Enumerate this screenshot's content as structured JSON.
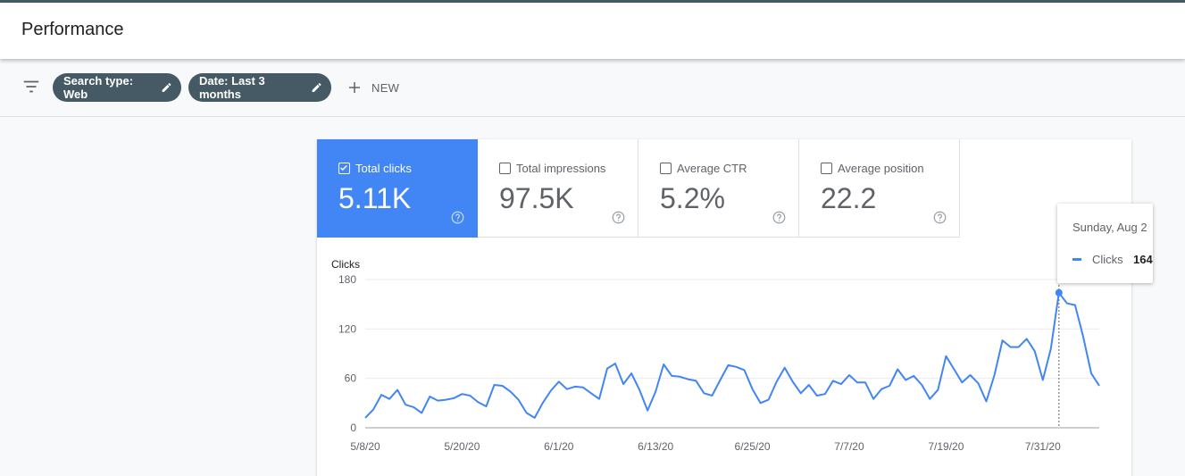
{
  "header": {
    "title": "Performance"
  },
  "toolbar": {
    "filter_icon": "filter-list-icon",
    "chips": [
      {
        "label": "Search type: Web",
        "icon": "edit-icon"
      },
      {
        "label": "Date: Last 3 months",
        "icon": "edit-icon"
      }
    ],
    "new_label": "NEW"
  },
  "metrics": [
    {
      "label": "Total clicks",
      "value": "5.11K",
      "checked": true
    },
    {
      "label": "Total impressions",
      "value": "97.5K",
      "checked": false
    },
    {
      "label": "Average CTR",
      "value": "5.2%",
      "checked": false
    },
    {
      "label": "Average position",
      "value": "22.2",
      "checked": false
    }
  ],
  "colors": {
    "accent": "#4285f4",
    "chip": "#455a64"
  },
  "tooltip": {
    "date": "Sunday, Aug 2",
    "series": "Clicks",
    "value": "164"
  },
  "chart_data": {
    "type": "line",
    "ylabel": "Clicks",
    "ylim": [
      0,
      180
    ],
    "yticks": [
      0,
      60,
      120,
      180
    ],
    "xtick_labels": [
      "5/8/20",
      "5/20/20",
      "6/1/20",
      "6/13/20",
      "6/25/20",
      "7/7/20",
      "7/19/20",
      "7/31/20"
    ],
    "xtick_indices": [
      0,
      12,
      24,
      36,
      48,
      60,
      72,
      84
    ],
    "highlight_index": 86,
    "grid": true,
    "series": [
      {
        "name": "Clicks",
        "color": "#4285f4",
        "values": [
          12,
          22,
          40,
          35,
          46,
          28,
          25,
          18,
          38,
          33,
          34,
          36,
          41,
          39,
          31,
          26,
          52,
          51,
          44,
          34,
          18,
          12,
          30,
          45,
          56,
          47,
          50,
          49,
          42,
          35,
          72,
          78,
          53,
          66,
          46,
          21,
          44,
          77,
          63,
          62,
          59,
          57,
          42,
          39,
          58,
          76,
          74,
          70,
          47,
          30,
          34,
          56,
          73,
          56,
          42,
          52,
          39,
          41,
          57,
          53,
          64,
          55,
          55,
          35,
          47,
          51,
          71,
          58,
          63,
          52,
          35,
          46,
          87,
          71,
          55,
          64,
          54,
          32,
          64,
          106,
          98,
          98,
          108,
          93,
          58,
          96,
          164,
          151,
          149,
          111,
          66,
          51
        ]
      }
    ]
  }
}
